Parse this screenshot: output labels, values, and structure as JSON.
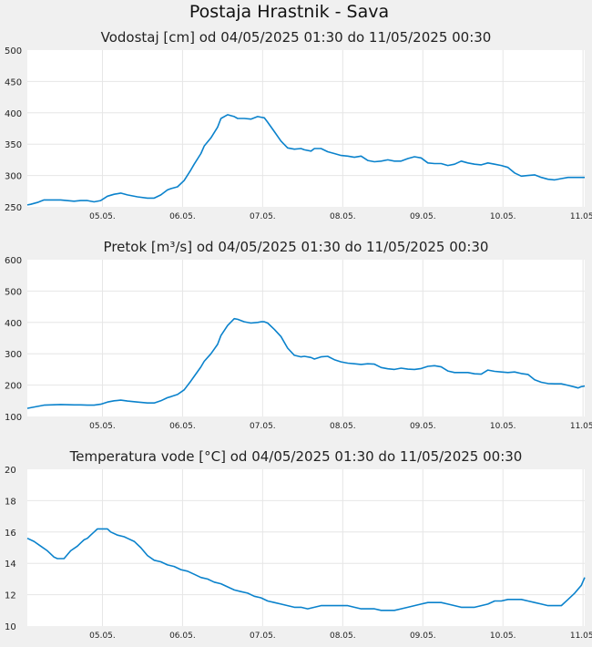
{
  "page": {
    "title": "Postaja Hrastnik - Sava"
  },
  "colors": {
    "line": "#0a82cc",
    "plot_bg": "#ffffff",
    "grid": "#e6e6e6",
    "page_bg": "#f0f0f0"
  },
  "chart_data": [
    {
      "type": "line",
      "title": "Vodostaj [cm] od 04/05/2025 01:30 do 11/05/2025 00:30",
      "ylim": [
        250,
        500
      ],
      "yticks": [
        "250",
        "300",
        "350",
        "400",
        "450",
        "500"
      ],
      "xlim": [
        0,
        167
      ],
      "xticks": [
        {
          "x": 22.5,
          "label": "05.05."
        },
        {
          "x": 46.5,
          "label": "06.05."
        },
        {
          "x": 70.5,
          "label": "07.05."
        },
        {
          "x": 94.5,
          "label": "08.05."
        },
        {
          "x": 118.5,
          "label": "09.05."
        },
        {
          "x": 142.5,
          "label": "10.05."
        },
        {
          "x": 166.5,
          "label": "11.05."
        }
      ],
      "grid": true,
      "series": [
        {
          "x": [
            0,
            1,
            3,
            5,
            10,
            14,
            16,
            18,
            20,
            22,
            24,
            26,
            28,
            30,
            33,
            36,
            38,
            40,
            42,
            43,
            45,
            47,
            49,
            50,
            52,
            53,
            55,
            57,
            58,
            60,
            62,
            63,
            65,
            67,
            69,
            70,
            71,
            72,
            74,
            76,
            78,
            80,
            82,
            83,
            85,
            86,
            88,
            90,
            92,
            94,
            96,
            98,
            100,
            102,
            104,
            106,
            108,
            110,
            112,
            114,
            116,
            118,
            120,
            122,
            124,
            126,
            128,
            130,
            132,
            134,
            136,
            138,
            140,
            142,
            144,
            146,
            148,
            150,
            152,
            154,
            156,
            158,
            160,
            162,
            164,
            165,
            166,
            167
          ],
          "values": [
            253,
            254,
            257,
            261,
            261,
            259,
            260,
            260,
            258,
            260,
            267,
            270,
            272,
            269,
            266,
            264,
            264,
            269,
            277,
            279,
            282,
            292,
            309,
            318,
            335,
            347,
            360,
            377,
            391,
            397,
            394,
            391,
            391,
            390,
            394,
            393,
            392,
            385,
            370,
            355,
            344,
            342,
            343,
            341,
            339,
            343,
            343,
            338,
            335,
            332,
            331,
            329,
            331,
            324,
            322,
            323,
            325,
            323,
            323,
            327,
            330,
            328,
            320,
            319,
            319,
            316,
            318,
            323,
            320,
            318,
            317,
            320,
            318,
            316,
            313,
            304,
            299,
            300,
            301,
            297,
            294,
            293,
            295,
            297,
            297,
            297,
            297,
            297
          ]
        }
      ]
    },
    {
      "type": "line",
      "title": "Pretok [m³/s] od 04/05/2025 01:30 do 11/05/2025 00:30",
      "ylim": [
        100,
        600
      ],
      "yticks": [
        "100",
        "200",
        "300",
        "400",
        "500",
        "600"
      ],
      "xlim": [
        0,
        167
      ],
      "xticks": [
        {
          "x": 22.5,
          "label": "05.05."
        },
        {
          "x": 46.5,
          "label": "06.05."
        },
        {
          "x": 70.5,
          "label": "07.05."
        },
        {
          "x": 94.5,
          "label": "08.05."
        },
        {
          "x": 118.5,
          "label": "09.05."
        },
        {
          "x": 142.5,
          "label": "10.05."
        },
        {
          "x": 166.5,
          "label": "11.05."
        }
      ],
      "grid": true,
      "series": [
        {
          "x": [
            0,
            1,
            3,
            5,
            10,
            14,
            16,
            18,
            20,
            22,
            24,
            26,
            28,
            30,
            33,
            36,
            38,
            40,
            42,
            43,
            45,
            47,
            49,
            50,
            52,
            53,
            55,
            57,
            58,
            60,
            62,
            63,
            65,
            67,
            69,
            70,
            71,
            72,
            74,
            76,
            78,
            80,
            82,
            83,
            85,
            86,
            88,
            90,
            92,
            94,
            96,
            98,
            100,
            102,
            104,
            106,
            108,
            110,
            112,
            114,
            116,
            118,
            120,
            122,
            124,
            126,
            128,
            130,
            132,
            134,
            136,
            138,
            140,
            142,
            144,
            146,
            148,
            150,
            152,
            154,
            156,
            158,
            160,
            162,
            164,
            165,
            166,
            167
          ],
          "values": [
            126,
            128,
            132,
            136,
            138,
            137,
            137,
            136,
            136,
            139,
            146,
            150,
            152,
            149,
            146,
            143,
            143,
            150,
            160,
            163,
            170,
            185,
            213,
            228,
            258,
            276,
            300,
            330,
            358,
            390,
            412,
            410,
            402,
            398,
            400,
            402,
            402,
            398,
            378,
            355,
            318,
            295,
            290,
            292,
            288,
            283,
            290,
            292,
            281,
            274,
            270,
            268,
            266,
            268,
            267,
            256,
            252,
            250,
            254,
            251,
            250,
            253,
            260,
            262,
            258,
            245,
            240,
            240,
            240,
            236,
            235,
            248,
            244,
            242,
            240,
            242,
            237,
            234,
            217,
            209,
            205,
            204,
            204,
            199,
            194,
            191,
            195,
            197
          ]
        }
      ]
    },
    {
      "type": "line",
      "title": "Temperatura vode [°C] od 04/05/2025 01:30 do 11/05/2025 00:30",
      "ylim": [
        10,
        20
      ],
      "yticks": [
        "10",
        "12",
        "14",
        "16",
        "18",
        "20"
      ],
      "xlim": [
        0,
        167
      ],
      "xticks": [
        {
          "x": 22.5,
          "label": "05.05."
        },
        {
          "x": 46.5,
          "label": "06.05."
        },
        {
          "x": 70.5,
          "label": "07.05."
        },
        {
          "x": 94.5,
          "label": "08.05."
        },
        {
          "x": 118.5,
          "label": "09.05."
        },
        {
          "x": 142.5,
          "label": "10.05."
        },
        {
          "x": 166.5,
          "label": "11.05."
        }
      ],
      "grid": true,
      "series": [
        {
          "x": [
            0,
            2,
            4,
            6,
            8,
            9,
            10,
            11,
            13,
            15,
            16,
            17,
            18,
            19,
            20,
            21,
            22,
            23,
            24,
            25,
            27,
            29,
            30,
            32,
            34,
            36,
            38,
            40,
            42,
            44,
            46,
            48,
            50,
            52,
            54,
            56,
            58,
            60,
            62,
            64,
            66,
            68,
            70,
            72,
            74,
            76,
            78,
            80,
            82,
            84,
            86,
            88,
            90,
            92,
            94,
            96,
            98,
            100,
            102,
            104,
            106,
            108,
            110,
            112,
            114,
            116,
            118,
            120,
            122,
            124,
            126,
            128,
            130,
            132,
            134,
            136,
            138,
            140,
            142,
            144,
            146,
            148,
            150,
            152,
            154,
            156,
            158,
            160,
            162,
            164,
            166,
            167
          ],
          "values": [
            15.6,
            15.4,
            15.1,
            14.8,
            14.4,
            14.3,
            14.3,
            14.3,
            14.8,
            15.1,
            15.3,
            15.5,
            15.6,
            15.8,
            16.0,
            16.2,
            16.2,
            16.2,
            16.2,
            16.0,
            15.8,
            15.7,
            15.6,
            15.4,
            15.0,
            14.5,
            14.2,
            14.1,
            13.9,
            13.8,
            13.6,
            13.5,
            13.3,
            13.1,
            13.0,
            12.8,
            12.7,
            12.5,
            12.3,
            12.2,
            12.1,
            11.9,
            11.8,
            11.6,
            11.5,
            11.4,
            11.3,
            11.2,
            11.2,
            11.1,
            11.2,
            11.3,
            11.3,
            11.3,
            11.3,
            11.3,
            11.2,
            11.1,
            11.1,
            11.1,
            11.0,
            11.0,
            11.0,
            11.1,
            11.2,
            11.3,
            11.4,
            11.5,
            11.5,
            11.5,
            11.4,
            11.3,
            11.2,
            11.2,
            11.2,
            11.3,
            11.4,
            11.6,
            11.6,
            11.7,
            11.7,
            11.7,
            11.6,
            11.5,
            11.4,
            11.3,
            11.3,
            11.3,
            11.7,
            12.1,
            12.6,
            13.1
          ]
        }
      ]
    }
  ]
}
